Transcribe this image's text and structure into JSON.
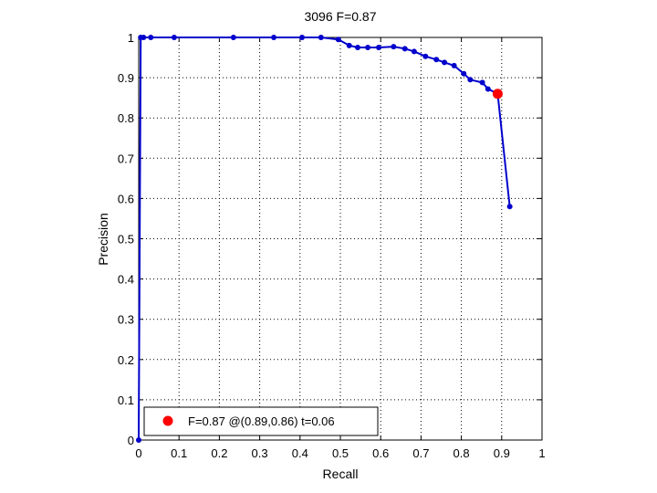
{
  "chart_data": {
    "type": "line",
    "title": "3096 F=0.87",
    "xlabel": "Recall",
    "ylabel": "Precision",
    "xlim": [
      0,
      1
    ],
    "ylim": [
      0,
      1
    ],
    "grid": true,
    "x_ticks": [
      "0",
      "0.1",
      "0.2",
      "0.3",
      "0.4",
      "0.5",
      "0.6",
      "0.7",
      "0.8",
      "0.9",
      "1"
    ],
    "y_ticks": [
      "0",
      "0.1",
      "0.2",
      "0.3",
      "0.4",
      "0.5",
      "0.6",
      "0.7",
      "0.8",
      "0.9",
      "1"
    ],
    "series": [
      {
        "color": "#0000cc",
        "x": [
          0,
          0.005,
          0.012,
          0.03,
          0.088,
          0.235,
          0.335,
          0.405,
          0.452,
          0.495,
          0.522,
          0.543,
          0.568,
          0.595,
          0.632,
          0.66,
          0.683,
          0.711,
          0.738,
          0.758,
          0.782,
          0.806,
          0.822,
          0.852,
          0.866,
          0.89,
          0.92
        ],
        "y": [
          0,
          1,
          1,
          1,
          1,
          1,
          1,
          1,
          1,
          0.995,
          0.98,
          0.975,
          0.975,
          0.975,
          0.977,
          0.972,
          0.965,
          0.953,
          0.945,
          0.938,
          0.93,
          0.91,
          0.895,
          0.888,
          0.872,
          0.86,
          0.58
        ]
      }
    ],
    "best_point": {
      "x": 0.89,
      "y": 0.86,
      "color": "#ff0000"
    },
    "legend": {
      "label": "F=0.87 @(0.89,0.86) t=0.06",
      "placement": "bottom-left"
    }
  }
}
